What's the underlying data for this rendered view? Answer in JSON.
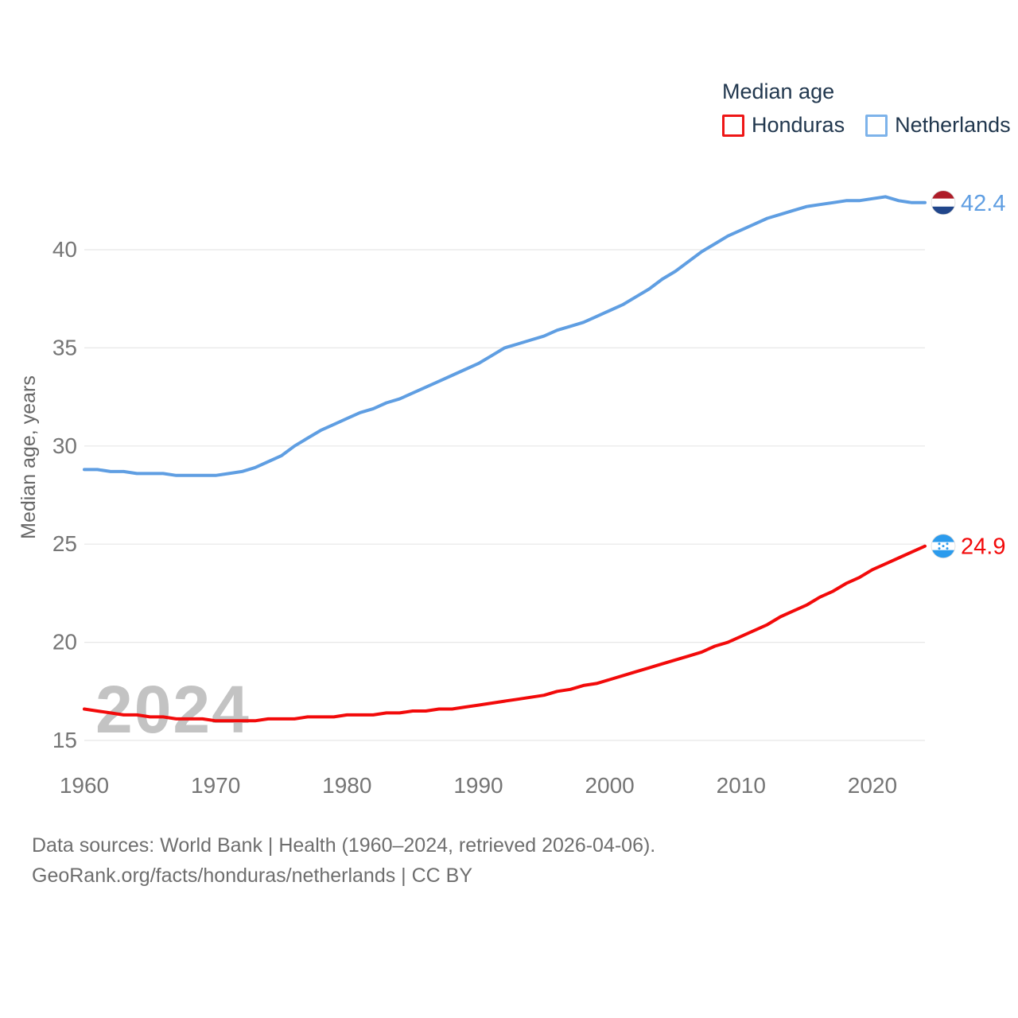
{
  "legend": {
    "title": "Median age",
    "items": [
      {
        "label": "Honduras",
        "color": "#ee1616"
      },
      {
        "label": "Netherlands",
        "color": "#7db3ea"
      }
    ]
  },
  "watermark": "2024",
  "footer": {
    "line1": "Data sources: World Bank | Health (1960–2024, retrieved 2026-04-06).",
    "line2": "GeoRank.org/facts/honduras/netherlands | CC BY"
  },
  "chart_data": {
    "type": "line",
    "title": "Median age",
    "xlabel": "",
    "ylabel": "Median age, years",
    "x_range": [
      1960,
      2024
    ],
    "y_range": [
      15,
      43
    ],
    "x_start": 1960,
    "x_step": 1,
    "x_ticks": [
      1960,
      1970,
      1980,
      1990,
      2000,
      2010,
      2020
    ],
    "y_ticks": [
      15,
      20,
      25,
      30,
      35,
      40
    ],
    "grid": "horizontal",
    "legend_position": "top-right",
    "series": [
      {
        "name": "Honduras",
        "color": "#f20a0a",
        "flag": "honduras",
        "end_label": "24.9",
        "values": [
          16.6,
          16.5,
          16.4,
          16.3,
          16.3,
          16.2,
          16.2,
          16.1,
          16.1,
          16.1,
          16.0,
          16.0,
          16.0,
          16.0,
          16.1,
          16.1,
          16.1,
          16.2,
          16.2,
          16.2,
          16.3,
          16.3,
          16.3,
          16.4,
          16.4,
          16.5,
          16.5,
          16.6,
          16.6,
          16.7,
          16.8,
          16.9,
          17.0,
          17.1,
          17.2,
          17.3,
          17.5,
          17.6,
          17.8,
          17.9,
          18.1,
          18.3,
          18.5,
          18.7,
          18.9,
          19.1,
          19.3,
          19.5,
          19.8,
          20.0,
          20.3,
          20.6,
          20.9,
          21.3,
          21.6,
          21.9,
          22.3,
          22.6,
          23.0,
          23.3,
          23.7,
          24.0,
          24.3,
          24.6,
          24.9
        ]
      },
      {
        "name": "Netherlands",
        "color": "#5f9ee2",
        "flag": "netherlands",
        "end_label": "42.4",
        "values": [
          28.8,
          28.8,
          28.7,
          28.7,
          28.6,
          28.6,
          28.6,
          28.5,
          28.5,
          28.5,
          28.5,
          28.6,
          28.7,
          28.9,
          29.2,
          29.5,
          30.0,
          30.4,
          30.8,
          31.1,
          31.4,
          31.7,
          31.9,
          32.2,
          32.4,
          32.7,
          33.0,
          33.3,
          33.6,
          33.9,
          34.2,
          34.6,
          35.0,
          35.2,
          35.4,
          35.6,
          35.9,
          36.1,
          36.3,
          36.6,
          36.9,
          37.2,
          37.6,
          38.0,
          38.5,
          38.9,
          39.4,
          39.9,
          40.3,
          40.7,
          41.0,
          41.3,
          41.6,
          41.8,
          42.0,
          42.2,
          42.3,
          42.4,
          42.5,
          42.5,
          42.6,
          42.7,
          42.5,
          42.4,
          42.4
        ]
      }
    ],
    "flag_colors": {
      "netherlands": {
        "top": "#ae1c28",
        "middle": "#ffffff",
        "bottom": "#21468b"
      },
      "honduras": {
        "top": "#2b9bed",
        "middle": "#ffffff",
        "bottom": "#2b9bed",
        "stars": "#2b9bed"
      }
    }
  }
}
